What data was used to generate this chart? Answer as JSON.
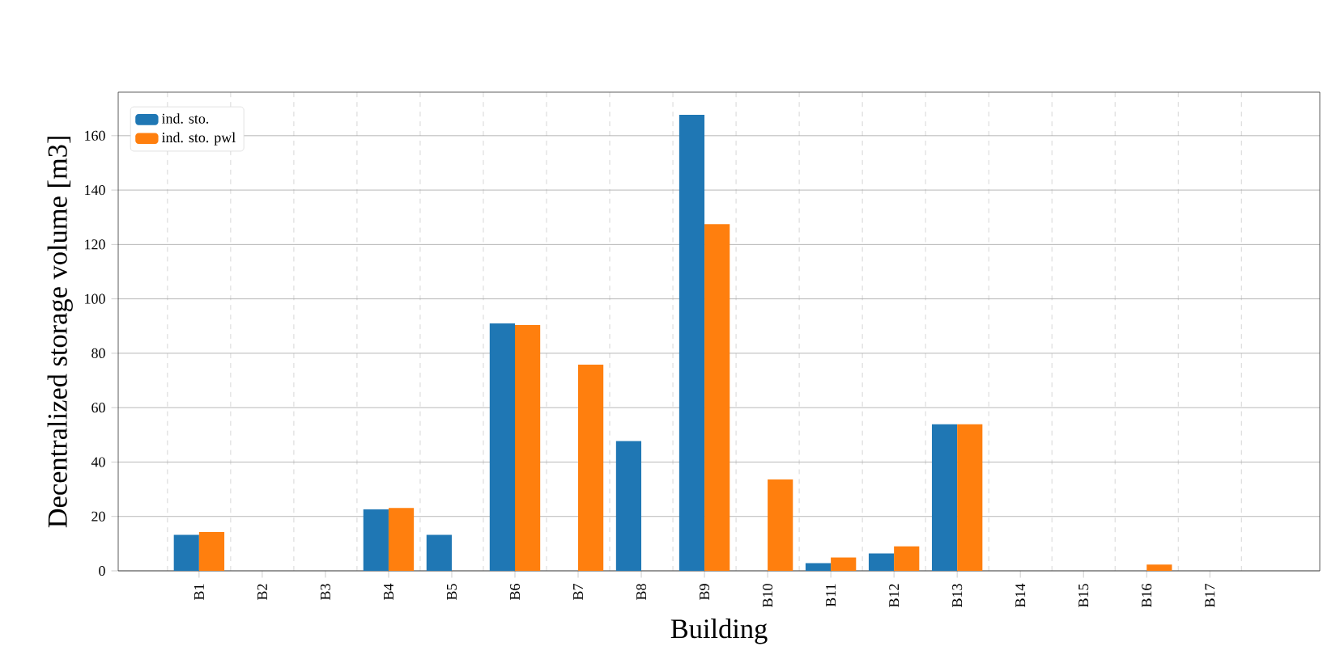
{
  "chart_data": {
    "type": "bar",
    "xlabel": "Building",
    "ylabel": "Decentralized storage volume [m3]",
    "categories": [
      "B1",
      "B2",
      "B3",
      "B4",
      "B5",
      "B6",
      "B7",
      "B8",
      "B9",
      "B10",
      "B11",
      "B12",
      "B13",
      "B14",
      "B15",
      "B16",
      "B17"
    ],
    "series": [
      {
        "name": "ind. sto.",
        "color": "#1f77b4",
        "values": [
          13.2,
          0,
          0,
          22.6,
          13.2,
          91.0,
          0,
          47.7,
          167.7,
          0,
          2.8,
          6.4,
          53.9,
          0,
          0,
          0,
          0
        ]
      },
      {
        "name": "ind. sto. pwl",
        "color": "#ff7f0e",
        "values": [
          14.3,
          0,
          0,
          23.1,
          0,
          90.4,
          75.8,
          0,
          127.5,
          33.6,
          4.9,
          9.0,
          53.9,
          0,
          0,
          2.3,
          0
        ]
      }
    ],
    "ylim": [
      0,
      176
    ],
    "yticks": [
      0,
      20,
      40,
      60,
      80,
      100,
      120,
      140,
      160
    ],
    "grid": true,
    "legend": "top left"
  }
}
